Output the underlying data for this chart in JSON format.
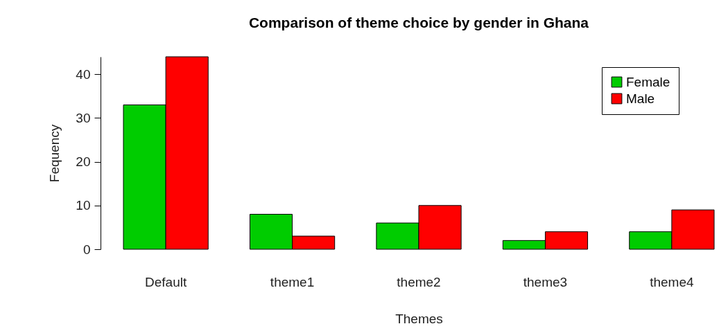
{
  "chart_data": {
    "type": "bar",
    "title": "Comparison of theme choice by gender in Ghana",
    "xlabel": "Themes",
    "ylabel": "Fequency",
    "categories": [
      "Default",
      "theme1",
      "theme2",
      "theme3",
      "theme4"
    ],
    "series": [
      {
        "name": "Female",
        "color": "#00cc00",
        "values": [
          33,
          8,
          6,
          2,
          4
        ]
      },
      {
        "name": "Male",
        "color": "#ff0000",
        "values": [
          44,
          3,
          10,
          4,
          9
        ]
      }
    ],
    "ylim": [
      0,
      44
    ],
    "yticks": [
      0,
      10,
      20,
      30,
      40
    ],
    "grid": false,
    "legend": "top right"
  }
}
